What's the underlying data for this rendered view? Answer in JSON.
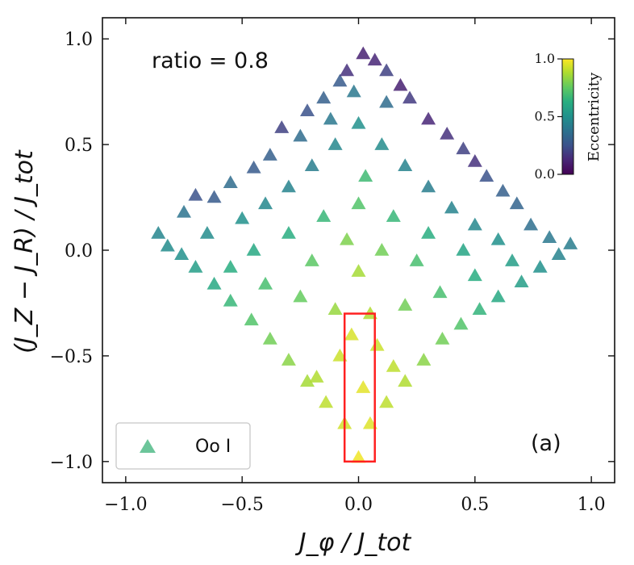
{
  "chart_data": {
    "type": "scatter",
    "title": "",
    "xlabel": "J_φ / J_tot",
    "ylabel": "(J_Z − J_R) / J_tot",
    "xlim": [
      -1.1,
      1.1
    ],
    "ylim": [
      -1.1,
      1.1
    ],
    "xticks": [
      -1.0,
      -0.5,
      0.0,
      0.5,
      1.0
    ],
    "yticks": [
      -1.0,
      -0.5,
      0.0,
      0.5,
      1.0
    ],
    "x_tick_labels": [
      "−1.0",
      "−0.5",
      "0.0",
      "0.5",
      "1.0"
    ],
    "y_tick_labels": [
      "−1.0",
      "−0.5",
      "0.0",
      "0.5",
      "1.0"
    ],
    "grid": false,
    "marker": "triangle",
    "colormap": "viridis",
    "series": [
      {
        "name": "Oo I",
        "legend_color": "#6cc59a",
        "note_color": "color = eccentricity",
        "points": [
          [
            -0.86,
            0.08,
            0.45
          ],
          [
            -0.82,
            0.02,
            0.48
          ],
          [
            -0.75,
            0.18,
            0.38
          ],
          [
            -0.7,
            0.26,
            0.25
          ],
          [
            -0.62,
            0.25,
            0.28
          ],
          [
            -0.55,
            0.32,
            0.35
          ],
          [
            -0.45,
            0.39,
            0.28
          ],
          [
            -0.38,
            0.45,
            0.3
          ],
          [
            -0.33,
            0.58,
            0.2
          ],
          [
            -0.25,
            0.54,
            0.35
          ],
          [
            -0.22,
            0.66,
            0.25
          ],
          [
            -0.15,
            0.72,
            0.3
          ],
          [
            -0.08,
            0.8,
            0.28
          ],
          [
            -0.05,
            0.85,
            0.15
          ],
          [
            0.02,
            0.93,
            0.1
          ],
          [
            0.07,
            0.9,
            0.12
          ],
          [
            0.12,
            0.85,
            0.2
          ],
          [
            0.18,
            0.78,
            0.1
          ],
          [
            0.22,
            0.72,
            0.18
          ],
          [
            0.3,
            0.62,
            0.12
          ],
          [
            0.38,
            0.55,
            0.15
          ],
          [
            0.45,
            0.48,
            0.2
          ],
          [
            0.5,
            0.42,
            0.15
          ],
          [
            0.55,
            0.35,
            0.25
          ],
          [
            0.62,
            0.28,
            0.3
          ],
          [
            0.68,
            0.22,
            0.32
          ],
          [
            0.74,
            0.12,
            0.36
          ],
          [
            0.82,
            0.06,
            0.4
          ],
          [
            0.91,
            0.03,
            0.42
          ],
          [
            0.86,
            -0.02,
            0.44
          ],
          [
            0.78,
            -0.08,
            0.5
          ],
          [
            0.7,
            -0.15,
            0.55
          ],
          [
            0.6,
            -0.22,
            0.6
          ],
          [
            0.52,
            -0.28,
            0.65
          ],
          [
            0.44,
            -0.35,
            0.72
          ],
          [
            0.36,
            -0.42,
            0.78
          ],
          [
            0.28,
            -0.52,
            0.82
          ],
          [
            0.2,
            -0.62,
            0.88
          ],
          [
            0.12,
            -0.72,
            0.9
          ],
          [
            0.05,
            -0.82,
            0.95
          ],
          [
            0.0,
            -0.98,
            0.98
          ],
          [
            -0.06,
            -0.82,
            0.93
          ],
          [
            -0.14,
            -0.72,
            0.9
          ],
          [
            -0.22,
            -0.62,
            0.86
          ],
          [
            -0.3,
            -0.52,
            0.82
          ],
          [
            -0.38,
            -0.42,
            0.78
          ],
          [
            -0.46,
            -0.33,
            0.72
          ],
          [
            -0.55,
            -0.24,
            0.66
          ],
          [
            -0.62,
            -0.16,
            0.6
          ],
          [
            -0.7,
            -0.08,
            0.55
          ],
          [
            -0.76,
            -0.02,
            0.5
          ],
          [
            -0.65,
            0.08,
            0.48
          ],
          [
            -0.5,
            0.15,
            0.5
          ],
          [
            -0.4,
            0.22,
            0.46
          ],
          [
            -0.3,
            0.3,
            0.44
          ],
          [
            -0.2,
            0.4,
            0.42
          ],
          [
            -0.1,
            0.5,
            0.46
          ],
          [
            0.0,
            0.6,
            0.5
          ],
          [
            0.1,
            0.5,
            0.48
          ],
          [
            0.2,
            0.4,
            0.44
          ],
          [
            0.3,
            0.3,
            0.42
          ],
          [
            0.4,
            0.2,
            0.44
          ],
          [
            0.5,
            0.12,
            0.46
          ],
          [
            0.6,
            0.05,
            0.5
          ],
          [
            0.66,
            -0.05,
            0.55
          ],
          [
            0.5,
            -0.12,
            0.62
          ],
          [
            0.35,
            -0.2,
            0.7
          ],
          [
            0.2,
            -0.26,
            0.78
          ],
          [
            0.05,
            -0.3,
            0.88
          ],
          [
            -0.1,
            -0.28,
            0.84
          ],
          [
            -0.25,
            -0.22,
            0.76
          ],
          [
            -0.4,
            -0.16,
            0.7
          ],
          [
            -0.55,
            -0.08,
            0.62
          ],
          [
            -0.45,
            0.0,
            0.6
          ],
          [
            -0.3,
            0.08,
            0.62
          ],
          [
            -0.15,
            0.16,
            0.66
          ],
          [
            0.0,
            0.22,
            0.72
          ],
          [
            0.15,
            0.16,
            0.66
          ],
          [
            0.3,
            0.08,
            0.62
          ],
          [
            0.45,
            0.0,
            0.58
          ],
          [
            0.25,
            -0.05,
            0.7
          ],
          [
            0.1,
            0.0,
            0.78
          ],
          [
            -0.05,
            0.05,
            0.8
          ],
          [
            -0.2,
            -0.05,
            0.74
          ],
          [
            0.0,
            -0.1,
            0.86
          ],
          [
            0.08,
            -0.45,
            0.92
          ],
          [
            -0.08,
            -0.5,
            0.92
          ],
          [
            0.15,
            -0.55,
            0.9
          ],
          [
            -0.18,
            -0.6,
            0.88
          ],
          [
            0.02,
            -0.65,
            0.96
          ],
          [
            -0.03,
            -0.4,
            0.94
          ],
          [
            0.03,
            0.35,
            0.68
          ],
          [
            -0.02,
            0.75,
            0.4
          ],
          [
            0.12,
            0.7,
            0.35
          ],
          [
            -0.12,
            0.62,
            0.4
          ]
        ]
      }
    ],
    "legend": {
      "location": "lower left",
      "label": "Oo I"
    },
    "annotations": {
      "ratio_text": "ratio = 0.8",
      "panel_label": "(a)"
    },
    "highlight_box": {
      "x_min": -0.06,
      "x_max": 0.07,
      "y_min": -1.0,
      "y_max": -0.3,
      "color": "#ff2020"
    },
    "colorbar": {
      "label": "Eccentricity",
      "range": [
        0.0,
        1.0
      ],
      "ticks": [
        0.0,
        0.5,
        1.0
      ],
      "tick_labels": [
        "0.0",
        "0.5",
        "1.0"
      ]
    }
  }
}
